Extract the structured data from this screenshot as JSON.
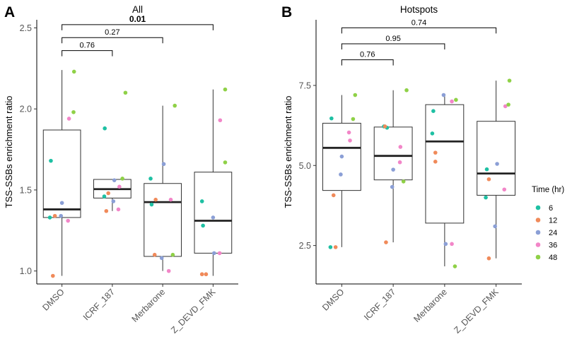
{
  "chart_data": [
    {
      "panel_letter": "A",
      "title": "All",
      "type": "box",
      "ylabel": "TSS-SSBs enrichment ratio",
      "xlabel": "",
      "ylim": [
        0.92,
        2.55
      ],
      "yticks": [
        1.0,
        1.5,
        2.0,
        2.5
      ],
      "ytick_labels": [
        "1.0",
        "1.5",
        "2.0",
        "2.5"
      ],
      "categories": [
        "DMSO",
        "ICRF_187",
        "Merbarone",
        "Z_DEVD_FMK"
      ],
      "boxes": [
        {
          "min": 0.97,
          "q1": 1.33,
          "median": 1.38,
          "q3": 1.87,
          "max": 2.24
        },
        {
          "min": 1.37,
          "q1": 1.45,
          "median": 1.505,
          "q3": 1.565,
          "max": 1.565
        },
        {
          "min": 1.0,
          "q1": 1.09,
          "median": 1.425,
          "q3": 1.54,
          "max": 2.02
        },
        {
          "min": 0.97,
          "q1": 1.11,
          "median": 1.31,
          "q3": 1.61,
          "max": 2.12
        }
      ],
      "points": [
        {
          "cat": 0,
          "dx": -0.22,
          "time": "6",
          "value": 1.68
        },
        {
          "cat": 0,
          "dx": -0.24,
          "time": "6",
          "value": 1.33
        },
        {
          "cat": 0,
          "dx": -0.18,
          "time": "12",
          "value": 0.97
        },
        {
          "cat": 0,
          "dx": -0.14,
          "time": "12",
          "value": 1.34
        },
        {
          "cat": 0,
          "dx": 0.0,
          "time": "24",
          "value": 1.42
        },
        {
          "cat": 0,
          "dx": -0.02,
          "time": "24",
          "value": 1.34
        },
        {
          "cat": 0,
          "dx": 0.14,
          "time": "36",
          "value": 1.94
        },
        {
          "cat": 0,
          "dx": 0.12,
          "time": "36",
          "value": 1.31
        },
        {
          "cat": 0,
          "dx": 0.24,
          "time": "48",
          "value": 2.23
        },
        {
          "cat": 0,
          "dx": 0.23,
          "time": "48",
          "value": 1.98
        },
        {
          "cat": 1,
          "dx": -0.15,
          "time": "6",
          "value": 1.88
        },
        {
          "cat": 1,
          "dx": -0.16,
          "time": "6",
          "value": 1.46
        },
        {
          "cat": 1,
          "dx": -0.08,
          "time": "12",
          "value": 1.48
        },
        {
          "cat": 1,
          "dx": -0.12,
          "time": "12",
          "value": 1.37
        },
        {
          "cat": 1,
          "dx": 0.04,
          "time": "24",
          "value": 1.56
        },
        {
          "cat": 1,
          "dx": 0.02,
          "time": "24",
          "value": 1.43
        },
        {
          "cat": 1,
          "dx": 0.14,
          "time": "36",
          "value": 1.52
        },
        {
          "cat": 1,
          "dx": 0.12,
          "time": "36",
          "value": 1.38
        },
        {
          "cat": 1,
          "dx": 0.26,
          "time": "48",
          "value": 2.1
        },
        {
          "cat": 1,
          "dx": 0.2,
          "time": "48",
          "value": 1.57
        },
        {
          "cat": 2,
          "dx": -0.24,
          "time": "6",
          "value": 1.57
        },
        {
          "cat": 2,
          "dx": -0.22,
          "time": "6",
          "value": 1.41
        },
        {
          "cat": 2,
          "dx": -0.14,
          "time": "12",
          "value": 1.44
        },
        {
          "cat": 2,
          "dx": -0.16,
          "time": "12",
          "value": 1.1
        },
        {
          "cat": 2,
          "dx": 0.02,
          "time": "24",
          "value": 1.66
        },
        {
          "cat": 2,
          "dx": -0.02,
          "time": "24",
          "value": 1.08
        },
        {
          "cat": 2,
          "dx": 0.16,
          "time": "36",
          "value": 1.44
        },
        {
          "cat": 2,
          "dx": 0.12,
          "time": "36",
          "value": 1.0
        },
        {
          "cat": 2,
          "dx": 0.24,
          "time": "48",
          "value": 2.02
        },
        {
          "cat": 2,
          "dx": 0.2,
          "time": "48",
          "value": 1.1
        },
        {
          "cat": 3,
          "dx": -0.22,
          "time": "6",
          "value": 1.43
        },
        {
          "cat": 3,
          "dx": -0.2,
          "time": "6",
          "value": 1.28
        },
        {
          "cat": 3,
          "dx": -0.22,
          "time": "12",
          "value": 0.98
        },
        {
          "cat": 3,
          "dx": -0.14,
          "time": "12",
          "value": 0.98
        },
        {
          "cat": 3,
          "dx": 0.0,
          "time": "24",
          "value": 1.33
        },
        {
          "cat": 3,
          "dx": 0.02,
          "time": "24",
          "value": 1.11
        },
        {
          "cat": 3,
          "dx": 0.14,
          "time": "36",
          "value": 1.93
        },
        {
          "cat": 3,
          "dx": 0.13,
          "time": "36",
          "value": 1.11
        },
        {
          "cat": 3,
          "dx": 0.24,
          "time": "48",
          "value": 2.12
        },
        {
          "cat": 3,
          "dx": 0.24,
          "time": "48",
          "value": 1.67
        }
      ],
      "comparisons": [
        {
          "from": 0,
          "to": 1,
          "label": "0.76",
          "level": 2.36,
          "bold": false
        },
        {
          "from": 0,
          "to": 2,
          "label": "0.27",
          "level": 2.44,
          "bold": false
        },
        {
          "from": 0,
          "to": 3,
          "label": "0.01",
          "level": 2.52,
          "bold": true
        }
      ]
    },
    {
      "panel_letter": "B",
      "title": "Hotspots",
      "type": "box",
      "ylabel": "TSS-SSBs enrichment ratio",
      "xlabel": "",
      "ylim": [
        1.3,
        9.55
      ],
      "yticks": [
        2.5,
        5.0,
        7.5
      ],
      "ytick_labels": [
        "2.5",
        "5.0",
        "7.5"
      ],
      "categories": [
        "DMSO",
        "ICRF_187",
        "Merbarone",
        "Z_DEVD_FMK"
      ],
      "boxes": [
        {
          "min": 2.45,
          "q1": 4.22,
          "median": 5.55,
          "q3": 6.32,
          "max": 7.2
        },
        {
          "min": 2.6,
          "q1": 4.55,
          "median": 5.3,
          "q3": 6.2,
          "max": 7.35
        },
        {
          "min": 1.85,
          "q1": 3.2,
          "median": 5.75,
          "q3": 6.9,
          "max": 7.2
        },
        {
          "min": 2.1,
          "q1": 4.07,
          "median": 4.75,
          "q3": 6.38,
          "max": 7.65
        }
      ],
      "points": [
        {
          "cat": 0,
          "dx": -0.2,
          "time": "6",
          "value": 6.47
        },
        {
          "cat": 0,
          "dx": -0.22,
          "time": "6",
          "value": 2.45
        },
        {
          "cat": 0,
          "dx": -0.16,
          "time": "12",
          "value": 4.07
        },
        {
          "cat": 0,
          "dx": -0.12,
          "time": "12",
          "value": 2.45
        },
        {
          "cat": 0,
          "dx": 0.0,
          "time": "24",
          "value": 5.28
        },
        {
          "cat": 0,
          "dx": -0.02,
          "time": "24",
          "value": 4.72
        },
        {
          "cat": 0,
          "dx": 0.14,
          "time": "36",
          "value": 6.03
        },
        {
          "cat": 0,
          "dx": 0.16,
          "time": "36",
          "value": 5.78
        },
        {
          "cat": 0,
          "dx": 0.26,
          "time": "48",
          "value": 7.2
        },
        {
          "cat": 0,
          "dx": 0.22,
          "time": "48",
          "value": 6.45
        },
        {
          "cat": 1,
          "dx": -0.18,
          "time": "6",
          "value": 6.22
        },
        {
          "cat": 1,
          "dx": -0.12,
          "time": "6",
          "value": 6.18
        },
        {
          "cat": 1,
          "dx": -0.16,
          "time": "12",
          "value": 6.22
        },
        {
          "cat": 1,
          "dx": -0.14,
          "time": "12",
          "value": 2.6
        },
        {
          "cat": 1,
          "dx": 0.0,
          "time": "24",
          "value": 4.87
        },
        {
          "cat": 1,
          "dx": -0.02,
          "time": "24",
          "value": 4.33
        },
        {
          "cat": 1,
          "dx": 0.14,
          "time": "36",
          "value": 5.58
        },
        {
          "cat": 1,
          "dx": 0.13,
          "time": "36",
          "value": 5.1
        },
        {
          "cat": 1,
          "dx": 0.26,
          "time": "48",
          "value": 7.35
        },
        {
          "cat": 1,
          "dx": 0.2,
          "time": "48",
          "value": 4.5
        },
        {
          "cat": 2,
          "dx": -0.22,
          "time": "6",
          "value": 6.7
        },
        {
          "cat": 2,
          "dx": -0.24,
          "time": "6",
          "value": 6.0
        },
        {
          "cat": 2,
          "dx": -0.18,
          "time": "12",
          "value": 5.4
        },
        {
          "cat": 2,
          "dx": -0.18,
          "time": "12",
          "value": 5.12
        },
        {
          "cat": 2,
          "dx": -0.02,
          "time": "24",
          "value": 7.2
        },
        {
          "cat": 2,
          "dx": 0.02,
          "time": "24",
          "value": 2.55
        },
        {
          "cat": 2,
          "dx": 0.14,
          "time": "36",
          "value": 7.0
        },
        {
          "cat": 2,
          "dx": 0.14,
          "time": "36",
          "value": 2.55
        },
        {
          "cat": 2,
          "dx": 0.22,
          "time": "48",
          "value": 7.05
        },
        {
          "cat": 2,
          "dx": 0.2,
          "time": "48",
          "value": 1.85
        },
        {
          "cat": 3,
          "dx": -0.18,
          "time": "6",
          "value": 4.88
        },
        {
          "cat": 3,
          "dx": -0.2,
          "time": "6",
          "value": 4.0
        },
        {
          "cat": 3,
          "dx": -0.14,
          "time": "12",
          "value": 4.57
        },
        {
          "cat": 3,
          "dx": -0.14,
          "time": "12",
          "value": 2.1
        },
        {
          "cat": 3,
          "dx": 0.02,
          "time": "24",
          "value": 5.05
        },
        {
          "cat": 3,
          "dx": -0.02,
          "time": "24",
          "value": 3.1
        },
        {
          "cat": 3,
          "dx": 0.18,
          "time": "36",
          "value": 6.85
        },
        {
          "cat": 3,
          "dx": 0.16,
          "time": "36",
          "value": 4.25
        },
        {
          "cat": 3,
          "dx": 0.26,
          "time": "48",
          "value": 7.65
        },
        {
          "cat": 3,
          "dx": 0.24,
          "time": "48",
          "value": 6.9
        }
      ],
      "comparisons": [
        {
          "from": 0,
          "to": 1,
          "label": "0.76",
          "level": 8.3,
          "bold": false
        },
        {
          "from": 0,
          "to": 2,
          "label": "0.95",
          "level": 8.8,
          "bold": false
        },
        {
          "from": 0,
          "to": 3,
          "label": "0.74",
          "level": 9.3,
          "bold": false
        }
      ]
    }
  ],
  "legend": {
    "title": "Time (hr)",
    "items": [
      {
        "label": "6",
        "color": "#1ec0a3"
      },
      {
        "label": "12",
        "color": "#f08a5a"
      },
      {
        "label": "24",
        "color": "#8b9fd6"
      },
      {
        "label": "36",
        "color": "#f286c8"
      },
      {
        "label": "48",
        "color": "#8fd147"
      }
    ]
  }
}
